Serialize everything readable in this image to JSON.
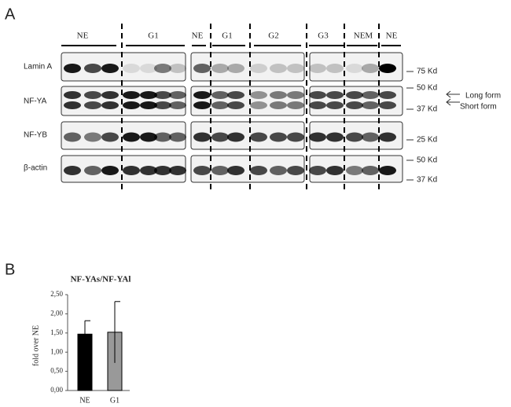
{
  "panel_a": {
    "label": "A",
    "groups": [
      "NE",
      "G1",
      "NE",
      "G1",
      "G2",
      "G3",
      "NEM",
      "NE"
    ],
    "rows": [
      "Lamin A",
      "NF-YA",
      "NF-YB",
      "β-actin"
    ],
    "markers": [
      "75 Kd",
      "50 Kd",
      "37 Kd",
      "25 Kd",
      "50 Kd",
      "37 Kd"
    ],
    "forms": [
      "Long form",
      "Short form"
    ]
  },
  "panel_b": {
    "label": "B"
  },
  "chart_data": {
    "type": "bar",
    "title": "NF-YAs/NF-YAl",
    "y_label": "fold over NE",
    "categories": [
      "NE",
      "G1"
    ],
    "values": [
      1.47,
      1.52
    ],
    "errors": [
      0.35,
      0.8
    ],
    "colors": [
      "#000000",
      "#999999"
    ],
    "ylim": [
      0,
      2.5
    ],
    "yticks": [
      {
        "value": 0,
        "label": "0,00"
      },
      {
        "value": 0.5,
        "label": "0,50"
      },
      {
        "value": 1,
        "label": "1,00"
      },
      {
        "value": 1.5,
        "label": "1,50"
      },
      {
        "value": 2,
        "label": "2,00"
      },
      {
        "value": 2.5,
        "label": "2,50"
      }
    ]
  }
}
